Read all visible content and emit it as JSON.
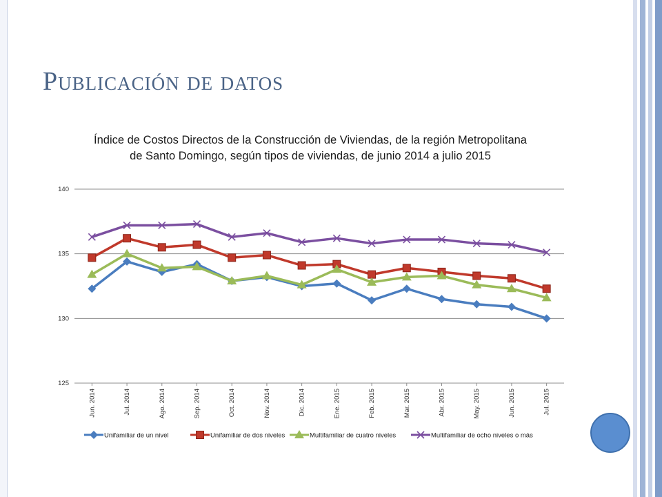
{
  "slide": {
    "title": "Publicación de datos"
  },
  "theme": {
    "title_color": "#4a6386",
    "stripe_colors": [
      "#d7deee",
      "#9fb4d6",
      "#c3cfe6",
      "#7f9cc9"
    ],
    "circle_color": "#5a8ed0"
  },
  "chart_data": {
    "type": "line",
    "title": "Índice de Costos Directos de la Construcción de Viviendas, de la región Metropolitana de Santo Domingo, según tipos de viviendas, de  junio 2014 a julio 2015",
    "categories": [
      "Jun. 2014",
      "Jul. 2014",
      "Ago. 2014",
      "Sep. 2014",
      "Oct. 2014",
      "Nov. 2014",
      "Dic. 2014",
      "Ene. 2015",
      "Feb. 2015",
      "Mar. 2015",
      "Abr. 2015",
      "May. 2015",
      "Jun. 2015",
      "Jul. 2015"
    ],
    "ylim": [
      125,
      140
    ],
    "yticks": [
      125,
      130,
      135,
      140
    ],
    "grid": true,
    "legend_position": "bottom",
    "series": [
      {
        "name": "Unifamiliar de un nivel",
        "color": "#4a7dbf",
        "marker": "diamond",
        "values": [
          132.3,
          134.4,
          133.6,
          134.2,
          132.9,
          133.2,
          132.5,
          132.7,
          131.4,
          132.3,
          131.5,
          131.1,
          130.9,
          130.0
        ]
      },
      {
        "name": "Unifamiliar de dos niveles",
        "color": "#c0392b",
        "marker": "square",
        "values": [
          134.7,
          136.2,
          135.5,
          135.7,
          134.7,
          134.9,
          134.1,
          134.2,
          133.4,
          133.9,
          133.6,
          133.3,
          133.1,
          132.3
        ]
      },
      {
        "name": "Multifamiliar de cuatro niveles",
        "color": "#9bbb59",
        "marker": "triangle",
        "values": [
          133.4,
          135.0,
          133.9,
          134.0,
          132.9,
          133.3,
          132.6,
          133.8,
          132.8,
          133.2,
          133.3,
          132.6,
          132.3,
          131.6
        ]
      },
      {
        "name": "Multifamiliar de ocho niveles o más",
        "color": "#7b4fa0",
        "marker": "x",
        "values": [
          136.3,
          137.2,
          137.2,
          137.3,
          136.3,
          136.6,
          135.9,
          136.2,
          135.8,
          136.1,
          136.1,
          135.8,
          135.7,
          135.1
        ]
      }
    ]
  }
}
